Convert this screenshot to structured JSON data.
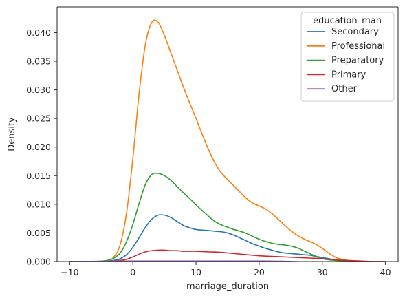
{
  "chart_data": {
    "type": "line",
    "title": "",
    "xlabel": "marriage_duration",
    "ylabel": "Density",
    "xlim": [
      -12,
      42
    ],
    "ylim": [
      0,
      0.0445
    ],
    "xticks": [
      -10,
      0,
      10,
      20,
      30,
      40
    ],
    "yticks": [
      0.0,
      0.005,
      0.01,
      0.015,
      0.02,
      0.025,
      0.03,
      0.035,
      0.04
    ],
    "ytick_labels": [
      "0.000",
      "0.005",
      "0.010",
      "0.015",
      "0.020",
      "0.025",
      "0.030",
      "0.035",
      "0.040"
    ],
    "grid": false,
    "legend": {
      "title": "education_man",
      "placement": "top-right"
    },
    "series": [
      {
        "name": "Secondary",
        "color": "#1f77b4",
        "x": [
          -10,
          -6,
          -4,
          -3,
          -2,
          -1,
          0,
          1,
          2,
          3,
          4,
          5,
          6,
          7,
          8,
          9,
          10,
          11,
          12,
          13,
          14,
          15,
          16,
          17,
          18,
          19,
          20,
          21,
          22,
          23,
          24,
          25,
          26,
          27,
          28,
          29,
          30,
          31,
          32,
          33,
          34,
          36,
          38,
          40
        ],
        "y": [
          0,
          0,
          0.0001,
          0.0002,
          0.0005,
          0.0012,
          0.0025,
          0.0042,
          0.006,
          0.0074,
          0.0081,
          0.0081,
          0.0077,
          0.007,
          0.0063,
          0.0059,
          0.0056,
          0.0055,
          0.0054,
          0.0053,
          0.0052,
          0.005,
          0.0046,
          0.0041,
          0.0036,
          0.0031,
          0.0027,
          0.0023,
          0.002,
          0.0017,
          0.0015,
          0.0014,
          0.0013,
          0.0012,
          0.0011,
          0.0009,
          0.0007,
          0.0005,
          0.0003,
          0.0002,
          0.0001,
          0,
          0,
          0
        ]
      },
      {
        "name": "Professional",
        "color": "#ff7f0e",
        "x": [
          -10,
          -6,
          -4,
          -3,
          -2,
          -1,
          0,
          1,
          2,
          3,
          4,
          5,
          6,
          7,
          8,
          9,
          10,
          11,
          12,
          13,
          14,
          15,
          16,
          17,
          18,
          19,
          20,
          21,
          22,
          23,
          24,
          25,
          26,
          27,
          28,
          29,
          30,
          31,
          32,
          33,
          34,
          35,
          36,
          38,
          40
        ],
        "y": [
          0,
          0,
          0.0002,
          0.0008,
          0.003,
          0.0085,
          0.018,
          0.0295,
          0.038,
          0.0418,
          0.0418,
          0.0395,
          0.0365,
          0.0335,
          0.0305,
          0.0277,
          0.025,
          0.0222,
          0.0195,
          0.0172,
          0.0155,
          0.0143,
          0.0132,
          0.0121,
          0.011,
          0.0102,
          0.0097,
          0.0092,
          0.0084,
          0.0074,
          0.0064,
          0.0054,
          0.0046,
          0.004,
          0.0035,
          0.003,
          0.0023,
          0.0015,
          0.0008,
          0.0004,
          0.0002,
          0.0001,
          0,
          0,
          0
        ]
      },
      {
        "name": "Preparatory",
        "color": "#2ca02c",
        "x": [
          -10,
          -6,
          -4,
          -3,
          -2,
          -1,
          0,
          1,
          2,
          3,
          4,
          5,
          6,
          7,
          8,
          9,
          10,
          11,
          12,
          13,
          14,
          15,
          16,
          17,
          18,
          19,
          20,
          21,
          22,
          23,
          24,
          25,
          26,
          27,
          28,
          29,
          30,
          31,
          32,
          34,
          36,
          38,
          40
        ],
        "y": [
          0,
          0,
          0.0002,
          0.0006,
          0.0015,
          0.0035,
          0.0065,
          0.0102,
          0.0135,
          0.0152,
          0.0154,
          0.015,
          0.0142,
          0.0131,
          0.012,
          0.011,
          0.0099,
          0.0089,
          0.0079,
          0.007,
          0.0064,
          0.006,
          0.0056,
          0.0053,
          0.0049,
          0.0044,
          0.0039,
          0.0035,
          0.0032,
          0.003,
          0.0029,
          0.0027,
          0.0024,
          0.0019,
          0.0014,
          0.0009,
          0.0005,
          0.0003,
          0.0002,
          0.0001,
          0,
          0,
          0
        ]
      },
      {
        "name": "Primary",
        "color": "#d62728",
        "x": [
          -10,
          -6,
          -4,
          -3,
          -2,
          -1,
          0,
          1,
          2,
          3,
          4,
          5,
          6,
          7,
          8,
          10,
          12,
          14,
          16,
          18,
          20,
          22,
          24,
          26,
          28,
          30,
          32,
          34,
          36,
          38,
          40
        ],
        "y": [
          0,
          0,
          0,
          0.0001,
          0.0002,
          0.0004,
          0.0008,
          0.0013,
          0.0017,
          0.0019,
          0.002,
          0.002,
          0.0019,
          0.0019,
          0.0018,
          0.0018,
          0.0017,
          0.0016,
          0.0014,
          0.0012,
          0.001,
          0.0009,
          0.0008,
          0.0007,
          0.0006,
          0.0005,
          0.0003,
          0.0002,
          0.0001,
          0,
          0
        ]
      },
      {
        "name": "Other",
        "color": "#9467bd",
        "x": [
          -10,
          0,
          10,
          20,
          26
        ],
        "y": [
          0,
          0.0001,
          0.0001,
          0.0001,
          0
        ]
      }
    ]
  }
}
